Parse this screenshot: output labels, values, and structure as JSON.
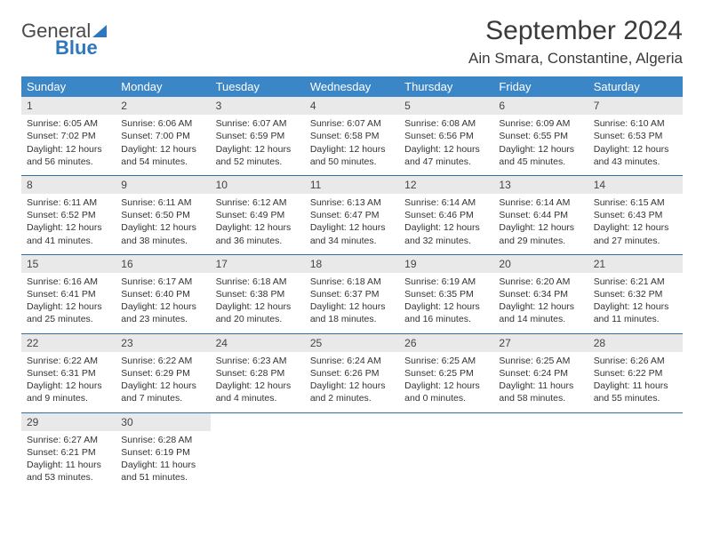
{
  "logo": {
    "text1": "General",
    "text2": "Blue"
  },
  "title": "September 2024",
  "location": "Ain Smara, Constantine, Algeria",
  "days_of_week": [
    "Sunday",
    "Monday",
    "Tuesday",
    "Wednesday",
    "Thursday",
    "Friday",
    "Saturday"
  ],
  "colors": {
    "header_bg": "#3b86c6",
    "header_text": "#ffffff",
    "daynum_bg": "#e9e9e9",
    "row_border": "#2f6ea8",
    "logo_blue": "#2f77bc",
    "body_text": "#333333",
    "page_bg": "#ffffff"
  },
  "type": "calendar-table",
  "weeks": [
    [
      {
        "n": "1",
        "sr": "Sunrise: 6:05 AM",
        "ss": "Sunset: 7:02 PM",
        "d1": "Daylight: 12 hours",
        "d2": "and 56 minutes."
      },
      {
        "n": "2",
        "sr": "Sunrise: 6:06 AM",
        "ss": "Sunset: 7:00 PM",
        "d1": "Daylight: 12 hours",
        "d2": "and 54 minutes."
      },
      {
        "n": "3",
        "sr": "Sunrise: 6:07 AM",
        "ss": "Sunset: 6:59 PM",
        "d1": "Daylight: 12 hours",
        "d2": "and 52 minutes."
      },
      {
        "n": "4",
        "sr": "Sunrise: 6:07 AM",
        "ss": "Sunset: 6:58 PM",
        "d1": "Daylight: 12 hours",
        "d2": "and 50 minutes."
      },
      {
        "n": "5",
        "sr": "Sunrise: 6:08 AM",
        "ss": "Sunset: 6:56 PM",
        "d1": "Daylight: 12 hours",
        "d2": "and 47 minutes."
      },
      {
        "n": "6",
        "sr": "Sunrise: 6:09 AM",
        "ss": "Sunset: 6:55 PM",
        "d1": "Daylight: 12 hours",
        "d2": "and 45 minutes."
      },
      {
        "n": "7",
        "sr": "Sunrise: 6:10 AM",
        "ss": "Sunset: 6:53 PM",
        "d1": "Daylight: 12 hours",
        "d2": "and 43 minutes."
      }
    ],
    [
      {
        "n": "8",
        "sr": "Sunrise: 6:11 AM",
        "ss": "Sunset: 6:52 PM",
        "d1": "Daylight: 12 hours",
        "d2": "and 41 minutes."
      },
      {
        "n": "9",
        "sr": "Sunrise: 6:11 AM",
        "ss": "Sunset: 6:50 PM",
        "d1": "Daylight: 12 hours",
        "d2": "and 38 minutes."
      },
      {
        "n": "10",
        "sr": "Sunrise: 6:12 AM",
        "ss": "Sunset: 6:49 PM",
        "d1": "Daylight: 12 hours",
        "d2": "and 36 minutes."
      },
      {
        "n": "11",
        "sr": "Sunrise: 6:13 AM",
        "ss": "Sunset: 6:47 PM",
        "d1": "Daylight: 12 hours",
        "d2": "and 34 minutes."
      },
      {
        "n": "12",
        "sr": "Sunrise: 6:14 AM",
        "ss": "Sunset: 6:46 PM",
        "d1": "Daylight: 12 hours",
        "d2": "and 32 minutes."
      },
      {
        "n": "13",
        "sr": "Sunrise: 6:14 AM",
        "ss": "Sunset: 6:44 PM",
        "d1": "Daylight: 12 hours",
        "d2": "and 29 minutes."
      },
      {
        "n": "14",
        "sr": "Sunrise: 6:15 AM",
        "ss": "Sunset: 6:43 PM",
        "d1": "Daylight: 12 hours",
        "d2": "and 27 minutes."
      }
    ],
    [
      {
        "n": "15",
        "sr": "Sunrise: 6:16 AM",
        "ss": "Sunset: 6:41 PM",
        "d1": "Daylight: 12 hours",
        "d2": "and 25 minutes."
      },
      {
        "n": "16",
        "sr": "Sunrise: 6:17 AM",
        "ss": "Sunset: 6:40 PM",
        "d1": "Daylight: 12 hours",
        "d2": "and 23 minutes."
      },
      {
        "n": "17",
        "sr": "Sunrise: 6:18 AM",
        "ss": "Sunset: 6:38 PM",
        "d1": "Daylight: 12 hours",
        "d2": "and 20 minutes."
      },
      {
        "n": "18",
        "sr": "Sunrise: 6:18 AM",
        "ss": "Sunset: 6:37 PM",
        "d1": "Daylight: 12 hours",
        "d2": "and 18 minutes."
      },
      {
        "n": "19",
        "sr": "Sunrise: 6:19 AM",
        "ss": "Sunset: 6:35 PM",
        "d1": "Daylight: 12 hours",
        "d2": "and 16 minutes."
      },
      {
        "n": "20",
        "sr": "Sunrise: 6:20 AM",
        "ss": "Sunset: 6:34 PM",
        "d1": "Daylight: 12 hours",
        "d2": "and 14 minutes."
      },
      {
        "n": "21",
        "sr": "Sunrise: 6:21 AM",
        "ss": "Sunset: 6:32 PM",
        "d1": "Daylight: 12 hours",
        "d2": "and 11 minutes."
      }
    ],
    [
      {
        "n": "22",
        "sr": "Sunrise: 6:22 AM",
        "ss": "Sunset: 6:31 PM",
        "d1": "Daylight: 12 hours",
        "d2": "and 9 minutes."
      },
      {
        "n": "23",
        "sr": "Sunrise: 6:22 AM",
        "ss": "Sunset: 6:29 PM",
        "d1": "Daylight: 12 hours",
        "d2": "and 7 minutes."
      },
      {
        "n": "24",
        "sr": "Sunrise: 6:23 AM",
        "ss": "Sunset: 6:28 PM",
        "d1": "Daylight: 12 hours",
        "d2": "and 4 minutes."
      },
      {
        "n": "25",
        "sr": "Sunrise: 6:24 AM",
        "ss": "Sunset: 6:26 PM",
        "d1": "Daylight: 12 hours",
        "d2": "and 2 minutes."
      },
      {
        "n": "26",
        "sr": "Sunrise: 6:25 AM",
        "ss": "Sunset: 6:25 PM",
        "d1": "Daylight: 12 hours",
        "d2": "and 0 minutes."
      },
      {
        "n": "27",
        "sr": "Sunrise: 6:25 AM",
        "ss": "Sunset: 6:24 PM",
        "d1": "Daylight: 11 hours",
        "d2": "and 58 minutes."
      },
      {
        "n": "28",
        "sr": "Sunrise: 6:26 AM",
        "ss": "Sunset: 6:22 PM",
        "d1": "Daylight: 11 hours",
        "d2": "and 55 minutes."
      }
    ],
    [
      {
        "n": "29",
        "sr": "Sunrise: 6:27 AM",
        "ss": "Sunset: 6:21 PM",
        "d1": "Daylight: 11 hours",
        "d2": "and 53 minutes."
      },
      {
        "n": "30",
        "sr": "Sunrise: 6:28 AM",
        "ss": "Sunset: 6:19 PM",
        "d1": "Daylight: 11 hours",
        "d2": "and 51 minutes."
      },
      null,
      null,
      null,
      null,
      null
    ]
  ]
}
